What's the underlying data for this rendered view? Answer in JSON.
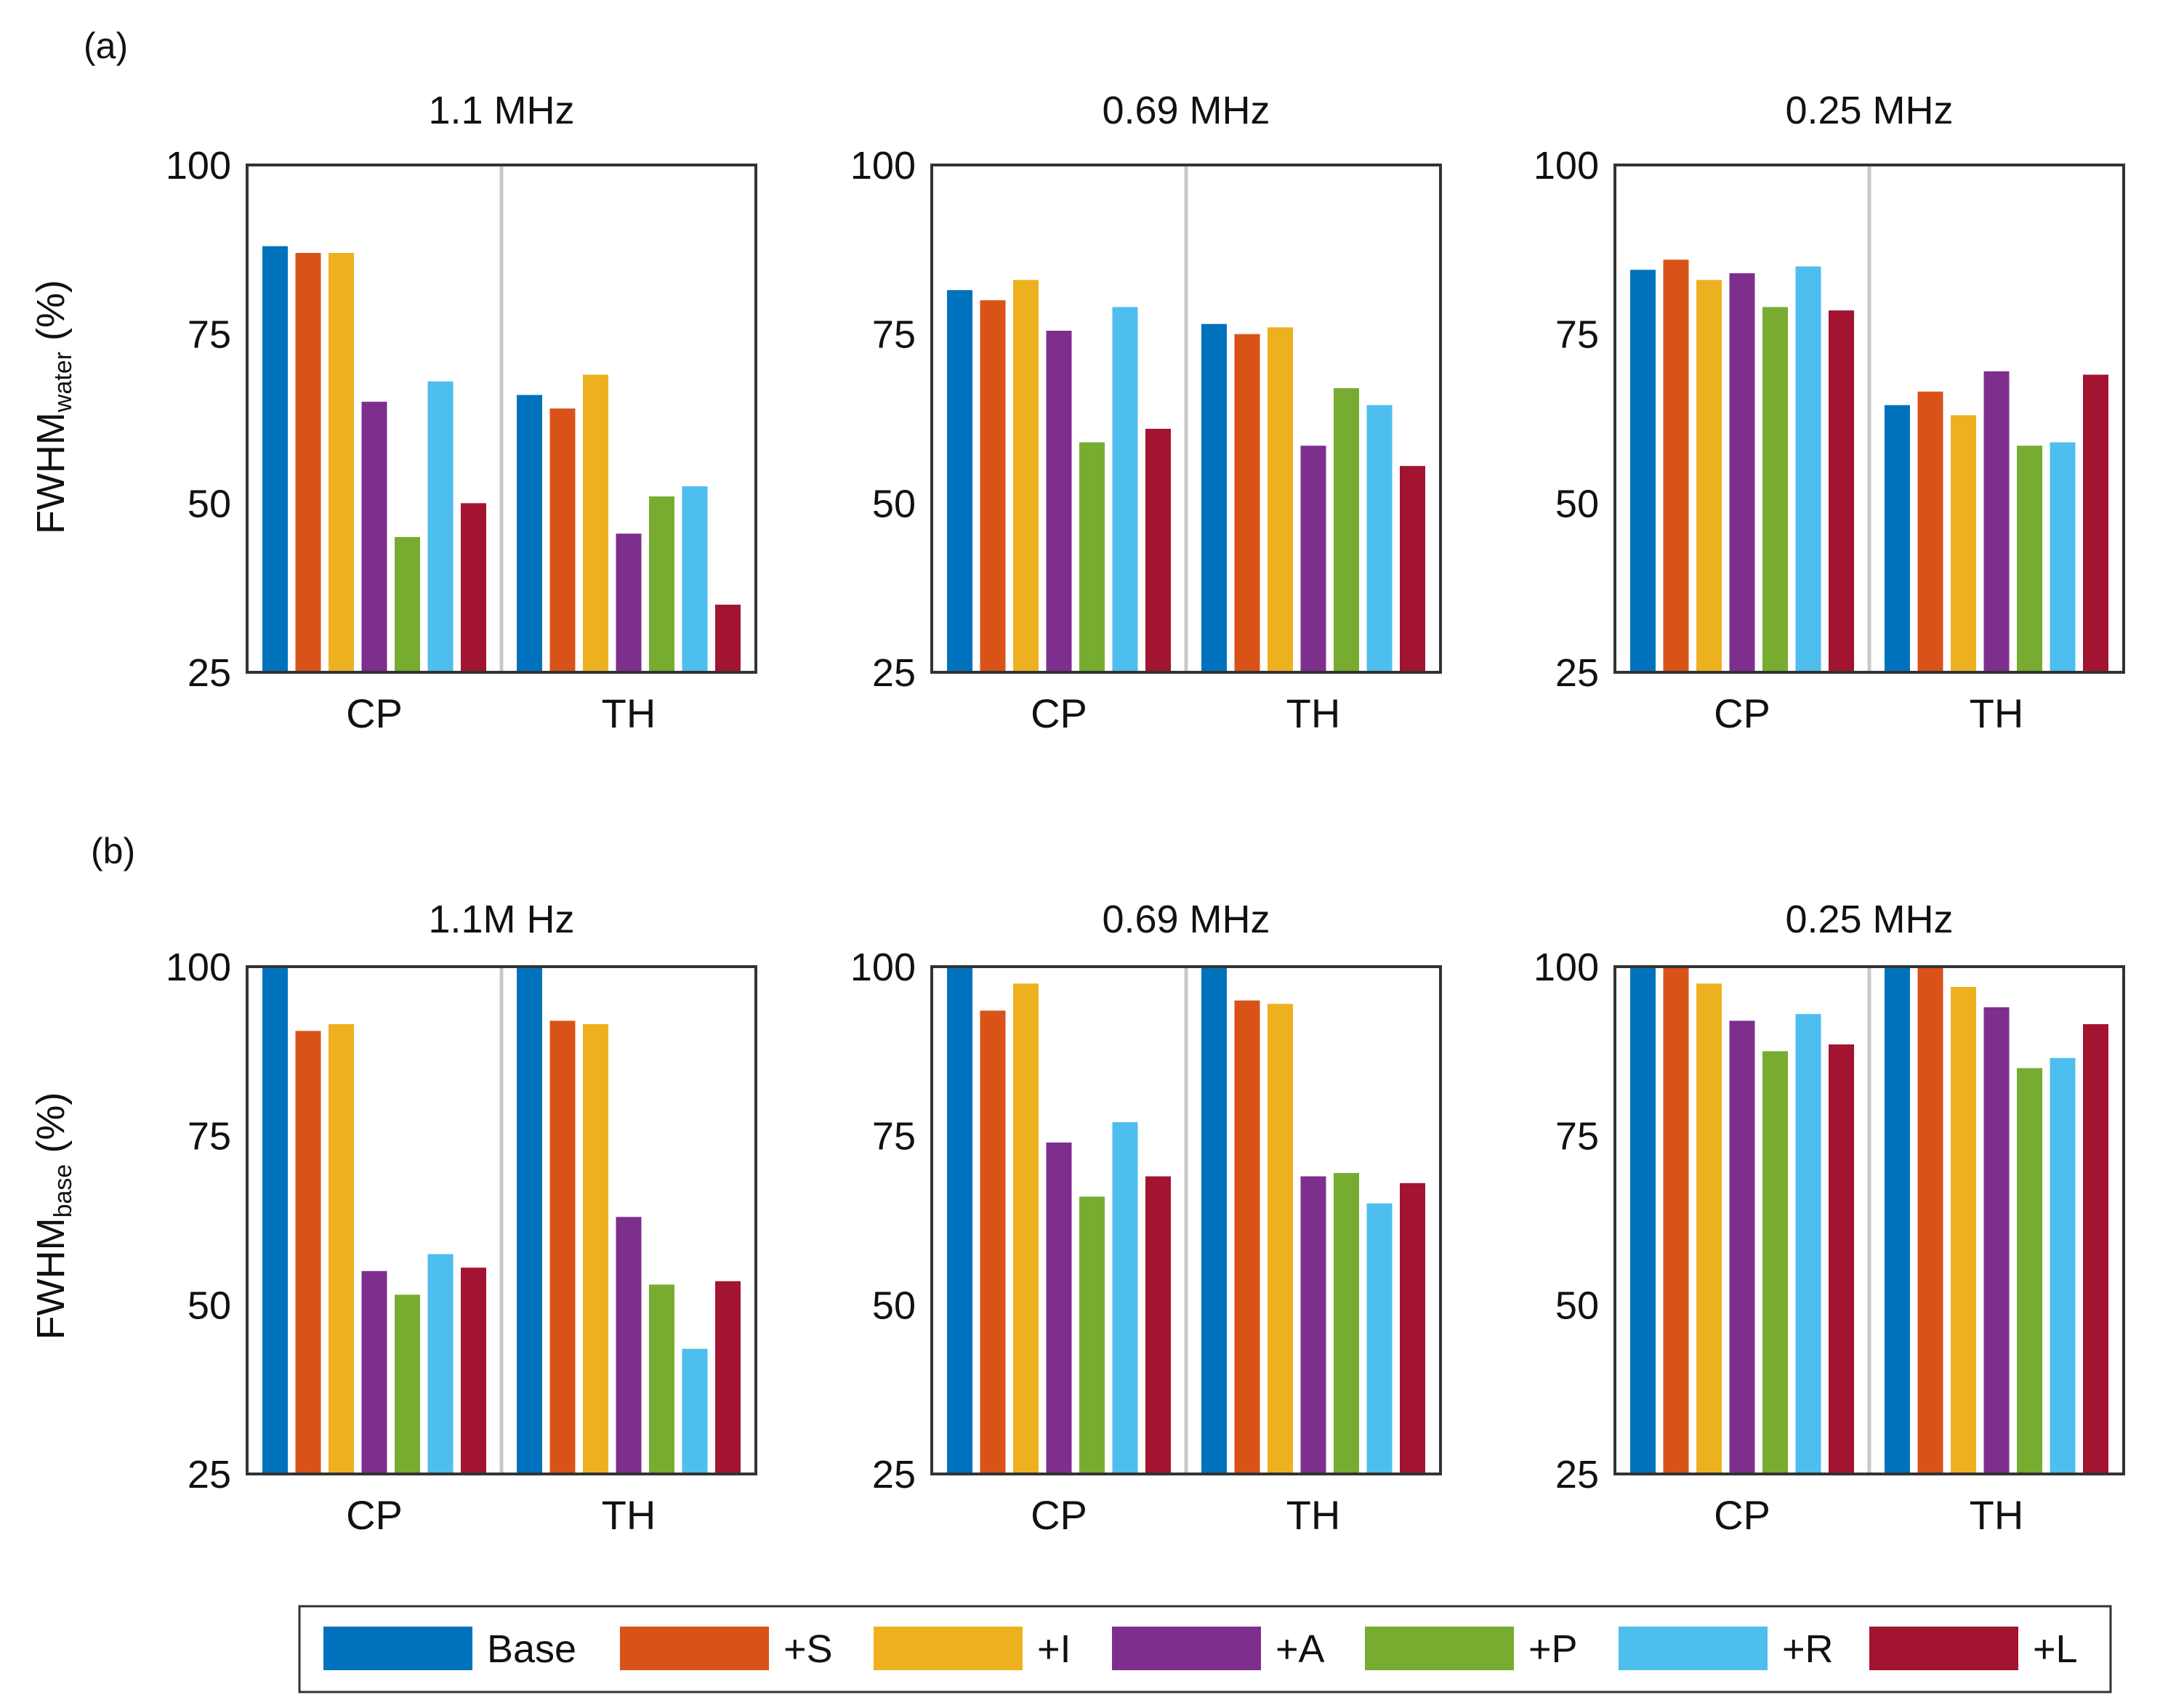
{
  "series_names": [
    "Base",
    "+S",
    "+I",
    "+A",
    "+P",
    "+R",
    "+L"
  ],
  "colors": [
    "#0072bd",
    "#d95319",
    "#edb120",
    "#7e2f8e",
    "#77ac30",
    "#4dbeee",
    "#a2142f"
  ],
  "rows": [
    {
      "panel_label": "(a)",
      "ylabel_main": "FWHM",
      "ylabel_sub": "water",
      "ylabel_unit": " (%)"
    },
    {
      "panel_label": "(b)",
      "ylabel_main": "FWHM",
      "ylabel_sub": "base",
      "ylabel_unit": " (%)"
    }
  ],
  "chart_data": [
    {
      "type": "bar",
      "row": 0,
      "title": "1.1 MHz",
      "categories": [
        "CP",
        "TH"
      ],
      "ylim": [
        25,
        100
      ],
      "yticks": [
        25,
        50,
        75,
        100
      ],
      "series": [
        {
          "name": "Base",
          "values": [
            88,
            66
          ]
        },
        {
          "name": "+S",
          "values": [
            87,
            64
          ]
        },
        {
          "name": "+I",
          "values": [
            87,
            69
          ]
        },
        {
          "name": "+A",
          "values": [
            65,
            45.5
          ]
        },
        {
          "name": "+P",
          "values": [
            45,
            51
          ]
        },
        {
          "name": "+R",
          "values": [
            68,
            52.5
          ]
        },
        {
          "name": "+L",
          "values": [
            50,
            35
          ]
        }
      ]
    },
    {
      "type": "bar",
      "row": 0,
      "title": "0.69 MHz",
      "categories": [
        "CP",
        "TH"
      ],
      "ylim": [
        25,
        100
      ],
      "yticks": [
        25,
        50,
        75,
        100
      ],
      "series": [
        {
          "name": "Base",
          "values": [
            81.5,
            76.5
          ]
        },
        {
          "name": "+S",
          "values": [
            80,
            75
          ]
        },
        {
          "name": "+I",
          "values": [
            83,
            76
          ]
        },
        {
          "name": "+A",
          "values": [
            75.5,
            58.5
          ]
        },
        {
          "name": "+P",
          "values": [
            59,
            67
          ]
        },
        {
          "name": "+R",
          "values": [
            79,
            64.5
          ]
        },
        {
          "name": "+L",
          "values": [
            61,
            55.5
          ]
        }
      ]
    },
    {
      "type": "bar",
      "row": 0,
      "title": "0.25 MHz",
      "categories": [
        "CP",
        "TH"
      ],
      "ylim": [
        25,
        100
      ],
      "yticks": [
        25,
        50,
        75,
        100
      ],
      "series": [
        {
          "name": "Base",
          "values": [
            84.5,
            64.5
          ]
        },
        {
          "name": "+S",
          "values": [
            86,
            66.5
          ]
        },
        {
          "name": "+I",
          "values": [
            83,
            63
          ]
        },
        {
          "name": "+A",
          "values": [
            84,
            69.5
          ]
        },
        {
          "name": "+P",
          "values": [
            79,
            58.5
          ]
        },
        {
          "name": "+R",
          "values": [
            85,
            59
          ]
        },
        {
          "name": "+L",
          "values": [
            78.5,
            69
          ]
        }
      ]
    },
    {
      "type": "bar",
      "row": 1,
      "title": "1.1M Hz",
      "categories": [
        "CP",
        "TH"
      ],
      "ylim": [
        25,
        100
      ],
      "yticks": [
        25,
        50,
        75,
        100
      ],
      "series": [
        {
          "name": "Base",
          "values": [
            100,
            100
          ]
        },
        {
          "name": "+S",
          "values": [
            90.5,
            92
          ]
        },
        {
          "name": "+I",
          "values": [
            91.5,
            91.5
          ]
        },
        {
          "name": "+A",
          "values": [
            55,
            63
          ]
        },
        {
          "name": "+P",
          "values": [
            51.5,
            53
          ]
        },
        {
          "name": "+R",
          "values": [
            57.5,
            43.5
          ]
        },
        {
          "name": "+L",
          "values": [
            55.5,
            53.5
          ]
        }
      ]
    },
    {
      "type": "bar",
      "row": 1,
      "title": "0.69 MHz",
      "categories": [
        "CP",
        "TH"
      ],
      "ylim": [
        25,
        100
      ],
      "yticks": [
        25,
        50,
        75,
        100
      ],
      "series": [
        {
          "name": "Base",
          "values": [
            100,
            100
          ]
        },
        {
          "name": "+S",
          "values": [
            93.5,
            95
          ]
        },
        {
          "name": "+I",
          "values": [
            97.5,
            94.5
          ]
        },
        {
          "name": "+A",
          "values": [
            74,
            69
          ]
        },
        {
          "name": "+P",
          "values": [
            66,
            69.5
          ]
        },
        {
          "name": "+R",
          "values": [
            77,
            65
          ]
        },
        {
          "name": "+L",
          "values": [
            69,
            68
          ]
        }
      ]
    },
    {
      "type": "bar",
      "row": 1,
      "title": "0.25 MHz",
      "categories": [
        "CP",
        "TH"
      ],
      "ylim": [
        25,
        100
      ],
      "yticks": [
        25,
        50,
        75,
        100
      ],
      "series": [
        {
          "name": "Base",
          "values": [
            100,
            100
          ]
        },
        {
          "name": "+S",
          "values": [
            100,
            100
          ]
        },
        {
          "name": "+I",
          "values": [
            97.5,
            97
          ]
        },
        {
          "name": "+A",
          "values": [
            92,
            94
          ]
        },
        {
          "name": "+P",
          "values": [
            87.5,
            85
          ]
        },
        {
          "name": "+R",
          "values": [
            93,
            86.5
          ]
        },
        {
          "name": "+L",
          "values": [
            88.5,
            91.5
          ]
        }
      ]
    }
  ]
}
